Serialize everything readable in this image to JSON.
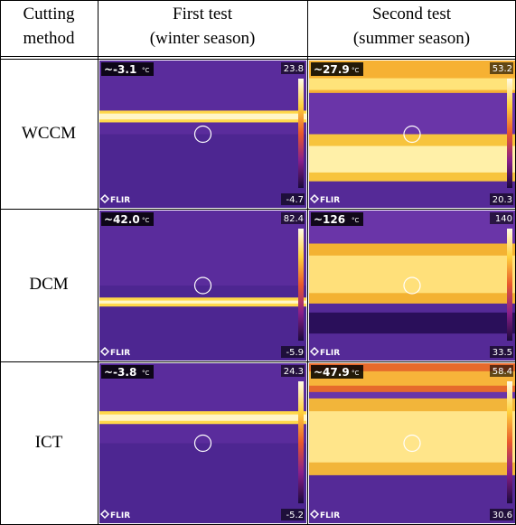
{
  "table": {
    "header": [
      [
        "Cutting",
        "method"
      ],
      [
        "First test",
        "(winter season)"
      ],
      [
        "Second test",
        "(summer season)"
      ]
    ],
    "rows": [
      {
        "method": "WCCM",
        "cells": [
          {
            "spot": "~-3.1",
            "unit": "°C",
            "max": "23.8",
            "min": "-4.7",
            "logo": "FLIR"
          },
          {
            "spot": "~27.9",
            "unit": "°C",
            "max": "53.2",
            "min": "20.3",
            "logo": "FLIR"
          }
        ]
      },
      {
        "method": "DCM",
        "cells": [
          {
            "spot": "~42.0",
            "unit": "°C",
            "max": "82.4",
            "min": "-5.9",
            "logo": "FLIR"
          },
          {
            "spot": "~126",
            "unit": "°C",
            "max": "140",
            "min": "33.5",
            "logo": "FLIR"
          }
        ]
      },
      {
        "method": "ICT",
        "cells": [
          {
            "spot": "~-3.8",
            "unit": "°C",
            "max": "24.3",
            "min": "-5.2",
            "logo": "FLIR"
          },
          {
            "spot": "~47.9",
            "unit": "°C",
            "max": "58.4",
            "min": "30.6",
            "logo": "FLIR"
          }
        ]
      }
    ]
  }
}
